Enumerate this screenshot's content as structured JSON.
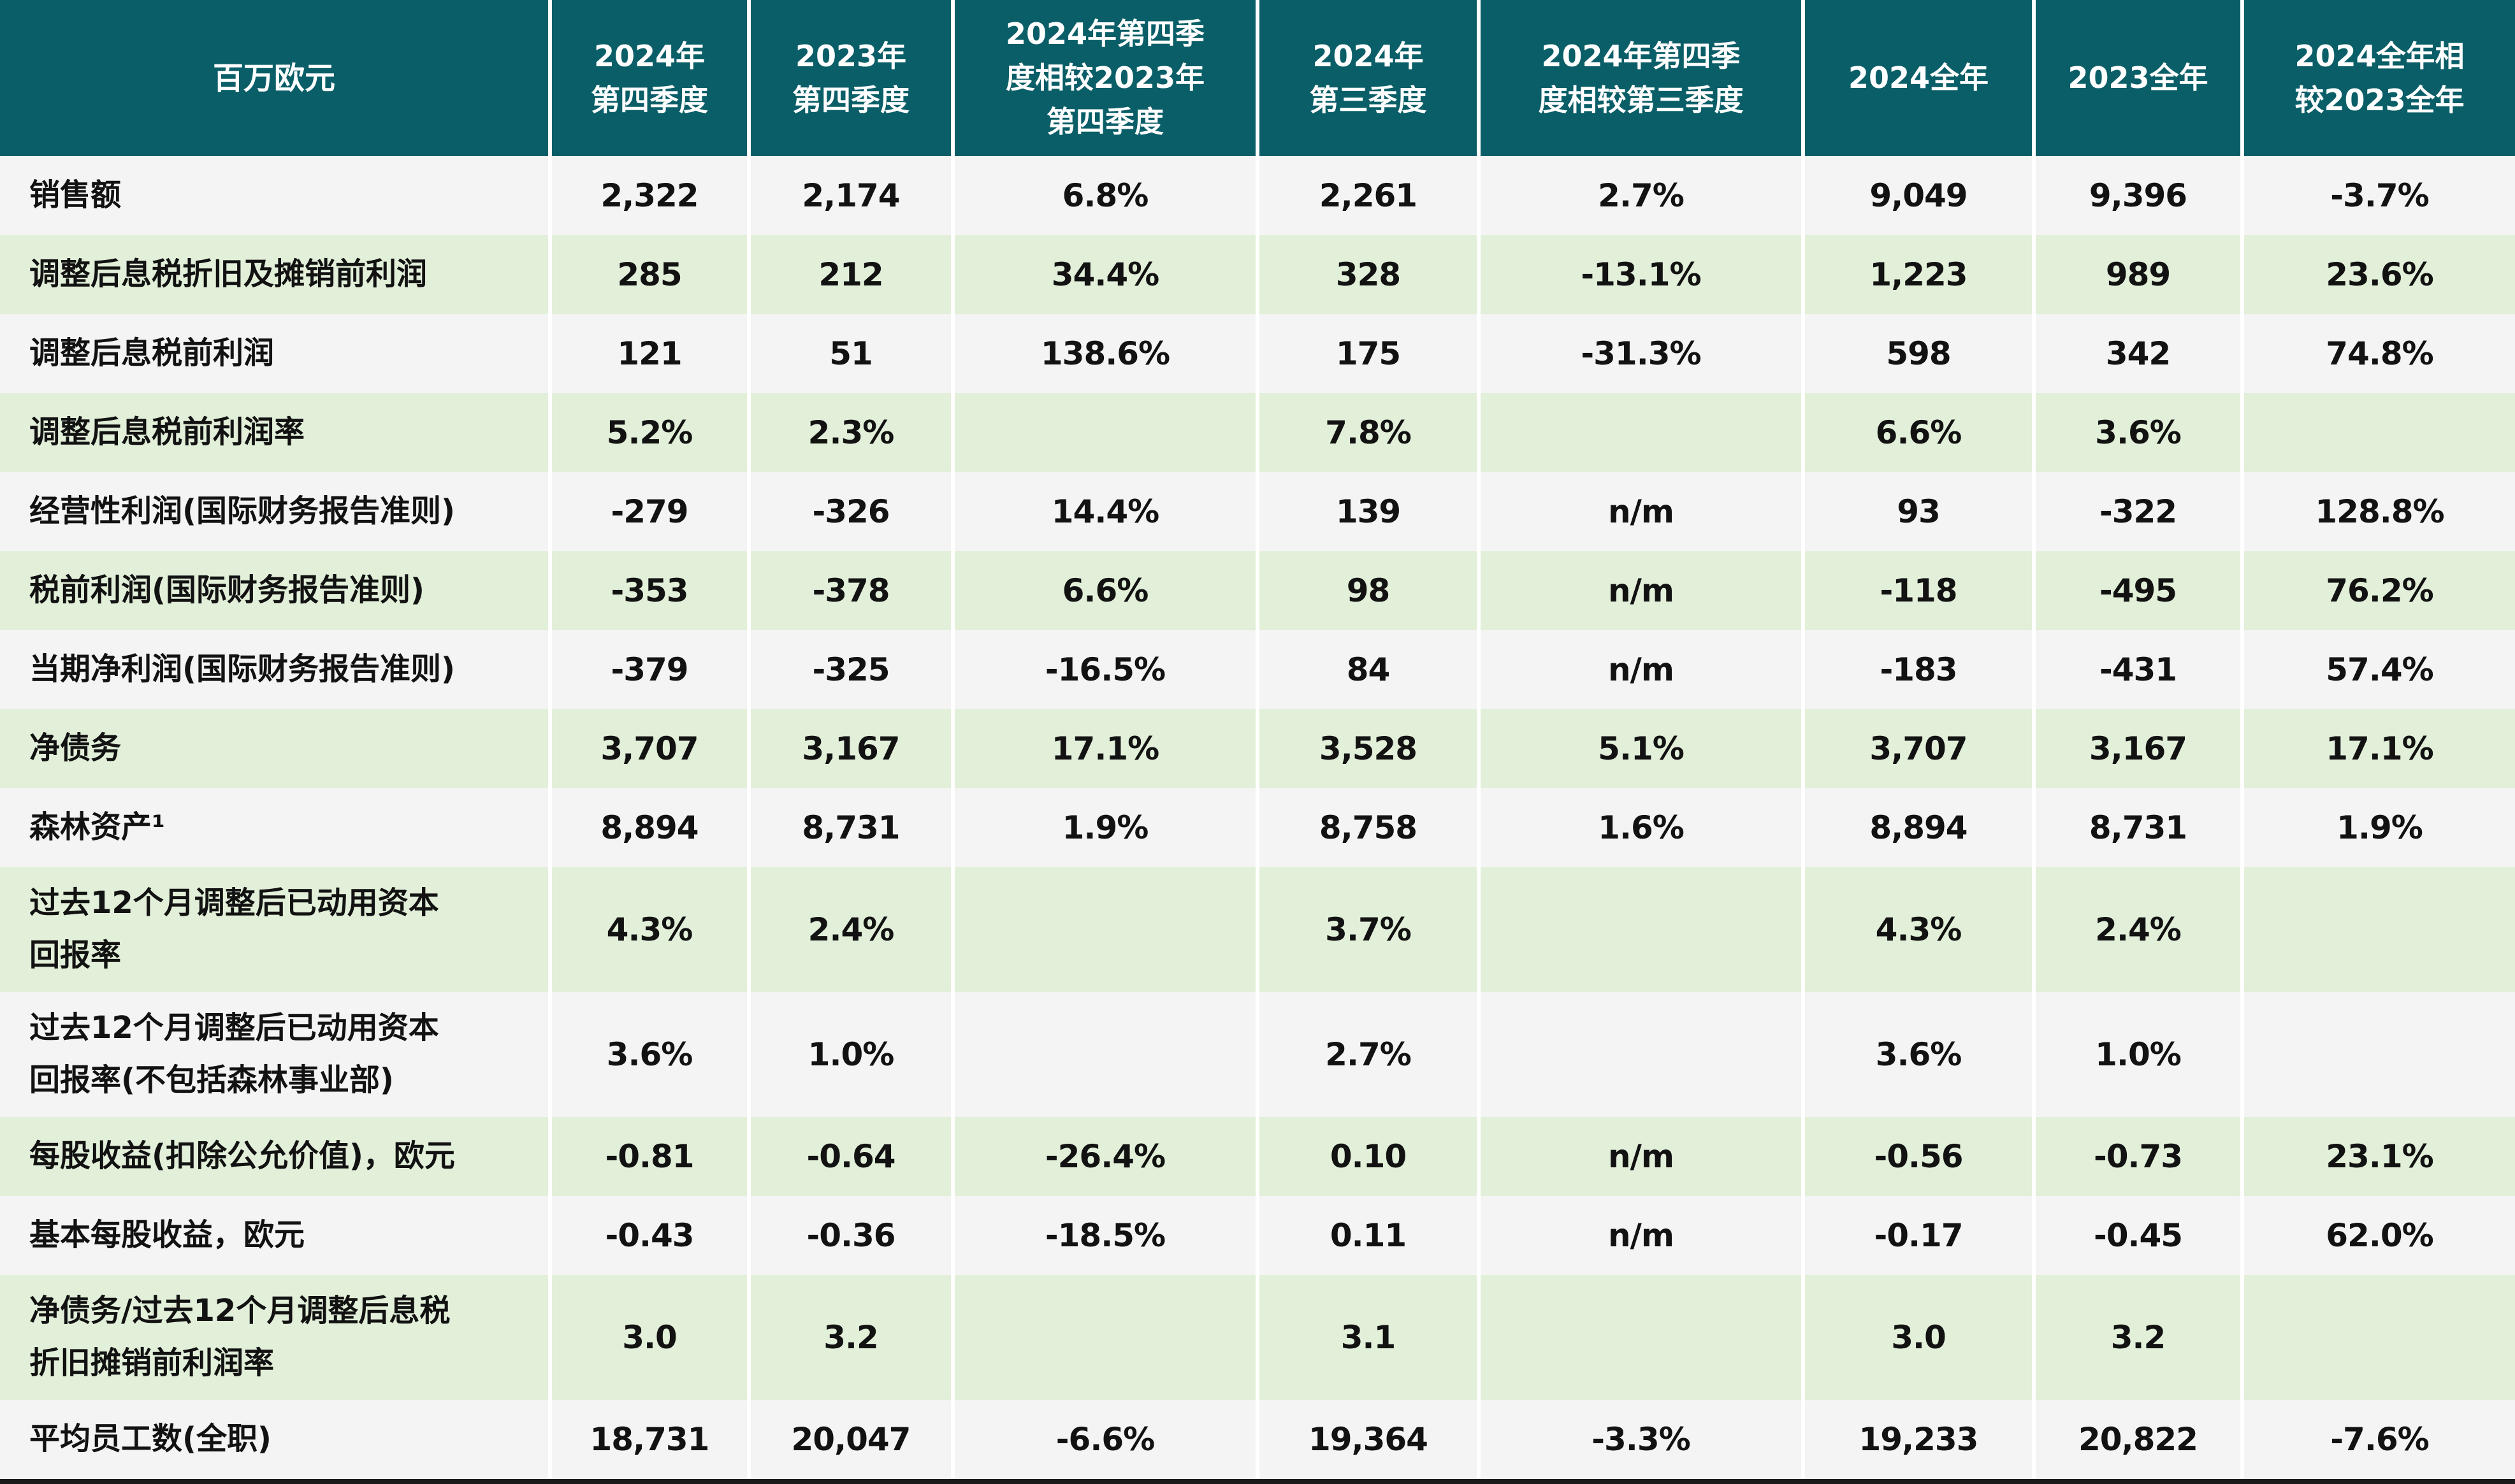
{
  "header": {
    "unit_label": "百万欧元",
    "columns": [
      "2024年\n第四季度",
      "2023年\n第四季度",
      "2024年第四季\n度相较2023年\n第四季度",
      "2024年\n第三季度",
      "2024年第四季\n度相较第三季度",
      "2024全年",
      "2023全年",
      "2024全年相\n较2023全年"
    ]
  },
  "rows": [
    {
      "label": "销售额",
      "values": [
        "2,322",
        "2,174",
        "6.8%",
        "2,261",
        "2.7%",
        "9,049",
        "9,396",
        "-3.7%"
      ]
    },
    {
      "label": "调整后息税折旧及摊销前利润",
      "values": [
        "285",
        "212",
        "34.4%",
        "328",
        "-13.1%",
        "1,223",
        "989",
        "23.6%"
      ]
    },
    {
      "label": "调整后息税前利润",
      "values": [
        "121",
        "51",
        "138.6%",
        "175",
        "-31.3%",
        "598",
        "342",
        "74.8%"
      ]
    },
    {
      "label": "调整后息税前利润率",
      "values": [
        "5.2%",
        "2.3%",
        "",
        "7.8%",
        "",
        "6.6%",
        "3.6%",
        ""
      ]
    },
    {
      "label": "经营性利润(国际财务报告准则)",
      "values": [
        "-279",
        "-326",
        "14.4%",
        "139",
        "n/m",
        "93",
        "-322",
        "128.8%"
      ]
    },
    {
      "label": "税前利润(国际财务报告准则)",
      "values": [
        "-353",
        "-378",
        "6.6%",
        "98",
        "n/m",
        "-118",
        "-495",
        "76.2%"
      ]
    },
    {
      "label": "当期净利润(国际财务报告准则)",
      "values": [
        "-379",
        "-325",
        "-16.5%",
        "84",
        "n/m",
        "-183",
        "-431",
        "57.4%"
      ]
    },
    {
      "label": "净债务",
      "values": [
        "3,707",
        "3,167",
        "17.1%",
        "3,528",
        "5.1%",
        "3,707",
        "3,167",
        "17.1%"
      ]
    },
    {
      "label": "森林资产¹",
      "values": [
        "8,894",
        "8,731",
        "1.9%",
        "8,758",
        "1.6%",
        "8,894",
        "8,731",
        "1.9%"
      ]
    },
    {
      "label": "过去12个月调整后已动用资本\n回报率",
      "values": [
        "4.3%",
        "2.4%",
        "",
        "3.7%",
        "",
        "4.3%",
        "2.4%",
        ""
      ]
    },
    {
      "label": "过去12个月调整后已动用资本\n回报率(不包括森林事业部)",
      "values": [
        "3.6%",
        "1.0%",
        "",
        "2.7%",
        "",
        "3.6%",
        "1.0%",
        ""
      ]
    },
    {
      "label": "每股收益(扣除公允价值)，欧元",
      "values": [
        "-0.81",
        "-0.64",
        "-26.4%",
        "0.10",
        "n/m",
        "-0.56",
        "-0.73",
        "23.1%"
      ]
    },
    {
      "label": "基本每股收益，欧元",
      "values": [
        "-0.43",
        "-0.36",
        "-18.5%",
        "0.11",
        "n/m",
        "-0.17",
        "-0.45",
        "62.0%"
      ]
    },
    {
      "label": "净债务/过去12个月调整后息税\n折旧摊销前利润率",
      "values": [
        "3.0",
        "3.2",
        "",
        "3.1",
        "",
        "3.0",
        "3.2",
        ""
      ]
    },
    {
      "label": "平均员工数(全职)",
      "values": [
        "18,731",
        "20,047",
        "-6.6%",
        "19,364",
        "-3.3%",
        "19,233",
        "20,822",
        "-7.6%"
      ]
    }
  ],
  "colors": {
    "header_background": "#0A5E67",
    "header_text": "#FFFFFF",
    "row_green": "#E2EFD9",
    "row_gray": "#F4F4F4",
    "body_text": "#121212",
    "column_divider": "#FFFFFF",
    "bottom_rule": "#1A1A1A"
  }
}
